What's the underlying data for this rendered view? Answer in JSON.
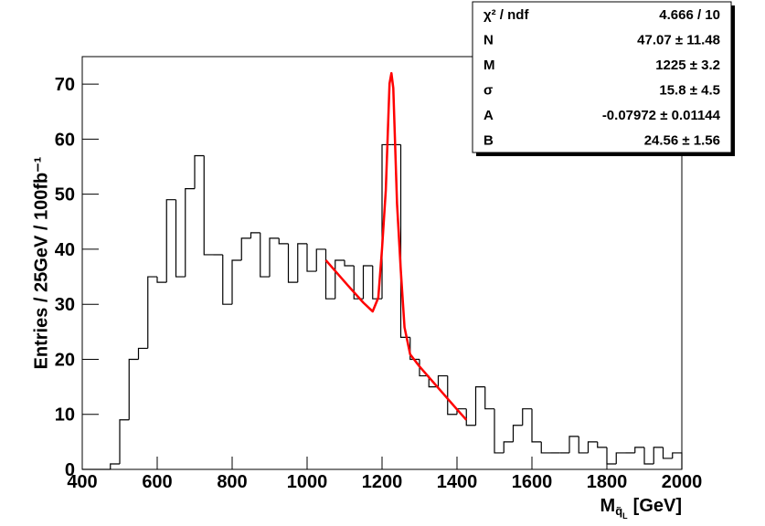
{
  "chart_data": {
    "type": "histogram",
    "y_label": "Entries / 25GeV / 100fb⁻¹",
    "x_label": {
      "main": "M",
      "sub": "q̃",
      "subsub": "L",
      "unit": "[GeV]"
    },
    "bins": [
      400,
      425,
      450,
      475,
      500,
      525,
      550,
      575,
      600,
      625,
      650,
      675,
      700,
      725,
      750,
      775,
      800,
      825,
      850,
      875,
      900,
      925,
      950,
      975,
      1000,
      1025,
      1050,
      1075,
      1100,
      1125,
      1150,
      1175,
      1200,
      1225,
      1250,
      1275,
      1300,
      1325,
      1350,
      1375,
      1400,
      1425,
      1450,
      1475,
      1500,
      1525,
      1550,
      1575,
      1600,
      1625,
      1650,
      1675,
      1700,
      1725,
      1750,
      1775,
      1800,
      1825,
      1850,
      1875,
      1900,
      1925,
      1950,
      1975,
      2000
    ],
    "values": [
      0,
      0,
      0,
      1,
      9,
      20,
      22,
      35,
      34,
      49,
      35,
      51,
      57,
      39,
      39,
      30,
      38,
      42,
      43,
      35,
      42,
      41,
      34,
      41,
      36,
      40,
      31,
      38,
      37,
      31,
      37,
      31,
      59,
      59,
      24,
      20,
      17,
      15,
      17,
      10,
      11,
      8,
      15,
      11,
      3,
      5,
      8,
      11,
      5,
      3,
      3,
      3,
      6,
      3,
      5,
      4,
      1,
      3,
      3,
      4,
      1,
      4,
      2,
      3
    ],
    "color": "#000000",
    "fit": {
      "color": "#ff0000",
      "x": [
        1050,
        1100,
        1150,
        1175,
        1190,
        1200,
        1210,
        1220,
        1225,
        1230,
        1240,
        1250,
        1260,
        1275,
        1300,
        1350,
        1400,
        1425
      ],
      "values": [
        38.0,
        34.1,
        30.3,
        28.7,
        31.2,
        40.1,
        50.7,
        70.1,
        72,
        69.3,
        48.3,
        36.2,
        25.8,
        20.9,
        18.7,
        14.8,
        10.9,
        9.0
      ]
    },
    "xlim": [
      400,
      2000
    ],
    "xticks": [
      400,
      600,
      800,
      1000,
      1200,
      1400,
      1600,
      1800,
      2000
    ],
    "ylim": [
      0,
      75
    ],
    "yticks": [
      0,
      10,
      20,
      30,
      40,
      50,
      60,
      70
    ],
    "stats": [
      {
        "label": "χ² / ndf",
        "value": "4.666 / 10"
      },
      {
        "label": "N",
        "value": "47.07 ± 11.48"
      },
      {
        "label": "M",
        "value": "1225 ± 3.2"
      },
      {
        "label": "σ",
        "value": "15.8 ± 4.5"
      },
      {
        "label": "A",
        "value": "-0.07972 ± 0.01144"
      },
      {
        "label": "B",
        "value": "24.56 ± 1.56"
      }
    ]
  }
}
